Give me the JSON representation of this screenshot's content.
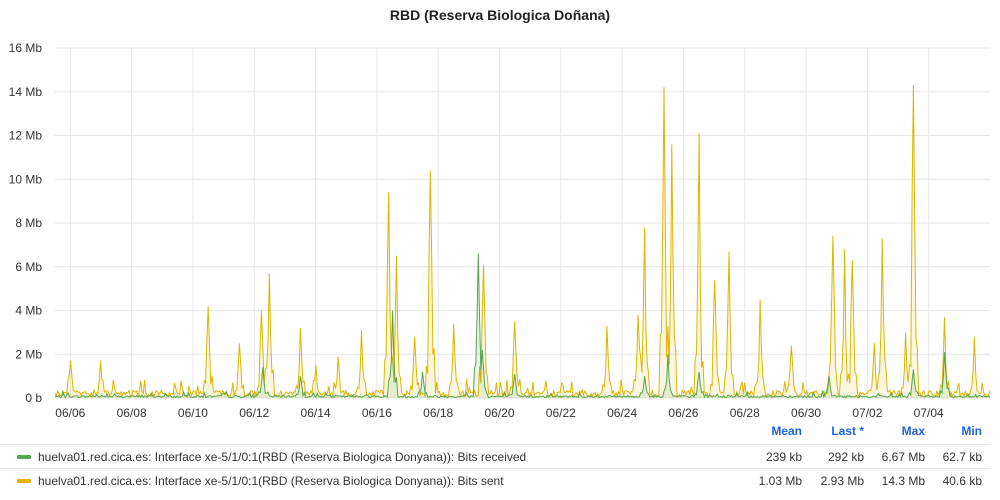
{
  "title": "RBD (Reserva Biologica Doñana)",
  "chart_data": {
    "type": "area",
    "title": "RBD (Reserva Biologica Doñana)",
    "x_ticks": [
      "06/06",
      "06/08",
      "06/10",
      "06/12",
      "06/14",
      "06/16",
      "06/18",
      "06/20",
      "06/22",
      "06/24",
      "06/26",
      "06/28",
      "06/30",
      "07/02",
      "07/04"
    ],
    "y_ticks": [
      "0 b",
      "2 Mb",
      "4 Mb",
      "6 Mb",
      "8 Mb",
      "10 Mb",
      "12 Mb",
      "14 Mb",
      "16 Mb"
    ],
    "ylim": [
      0,
      16
    ],
    "y_unit": "Mb",
    "xlim": [
      "06/05 12:00",
      "07/06 00:00"
    ],
    "grid": true,
    "series": [
      {
        "name": "huelva01.red.cica.es: Interface xe-5/1/0:1(RBD (Reserva Biologica Donyana)): Bits received",
        "color": "#56a64b",
        "peaks": [
          {
            "x": "06/12 07:00",
            "y": 1.4
          },
          {
            "x": "06/13 12:00",
            "y": 1.0
          },
          {
            "x": "06/16 12:00",
            "y": 4.0
          },
          {
            "x": "06/17 12:00",
            "y": 1.2
          },
          {
            "x": "06/19 07:00",
            "y": 6.6
          },
          {
            "x": "06/19 10:00",
            "y": 2.2
          },
          {
            "x": "06/20 12:00",
            "y": 1.1
          },
          {
            "x": "06/24 18:00",
            "y": 1.0
          },
          {
            "x": "06/25 12:00",
            "y": 2.0
          },
          {
            "x": "06/26 12:00",
            "y": 1.2
          },
          {
            "x": "06/30 18:00",
            "y": 1.0
          },
          {
            "x": "07/03 12:00",
            "y": 1.3
          },
          {
            "x": "07/04 12:00",
            "y": 2.1
          }
        ]
      },
      {
        "name": "huelva01.red.cica.es: Interface xe-5/1/0:1(RBD (Reserva Biologica Donyana)): Bits sent",
        "color": "#e0b400",
        "peaks": [
          {
            "x": "06/06 00:00",
            "y": 1.7
          },
          {
            "x": "06/07 00:00",
            "y": 1.7
          },
          {
            "x": "06/10 12:00",
            "y": 4.2
          },
          {
            "x": "06/11 12:00",
            "y": 2.5
          },
          {
            "x": "06/12 06:00",
            "y": 4.0
          },
          {
            "x": "06/12 12:00",
            "y": 5.7
          },
          {
            "x": "06/13 12:00",
            "y": 3.2
          },
          {
            "x": "06/14 00:00",
            "y": 1.5
          },
          {
            "x": "06/14 18:00",
            "y": 1.9
          },
          {
            "x": "06/15 12:00",
            "y": 3.1
          },
          {
            "x": "06/16 09:00",
            "y": 9.4
          },
          {
            "x": "06/16 15:00",
            "y": 6.5
          },
          {
            "x": "06/17 06:00",
            "y": 2.8
          },
          {
            "x": "06/17 18:00",
            "y": 10.4
          },
          {
            "x": "06/18 12:00",
            "y": 3.4
          },
          {
            "x": "06/19 12:00",
            "y": 6.1
          },
          {
            "x": "06/20 12:00",
            "y": 3.5
          },
          {
            "x": "06/21 12:00",
            "y": 0.8
          },
          {
            "x": "06/23 12:00",
            "y": 3.3
          },
          {
            "x": "06/24 12:00",
            "y": 3.8
          },
          {
            "x": "06/24 18:00",
            "y": 7.8
          },
          {
            "x": "06/25 09:00",
            "y": 14.2
          },
          {
            "x": "06/25 15:00",
            "y": 11.6
          },
          {
            "x": "06/26 12:00",
            "y": 12.1
          },
          {
            "x": "06/27 00:00",
            "y": 5.4
          },
          {
            "x": "06/27 12:00",
            "y": 6.7
          },
          {
            "x": "06/28 12:00",
            "y": 4.5
          },
          {
            "x": "06/29 12:00",
            "y": 2.4
          },
          {
            "x": "06/30 21:00",
            "y": 7.4
          },
          {
            "x": "07/01 06:00",
            "y": 6.8
          },
          {
            "x": "07/01 12:00",
            "y": 6.3
          },
          {
            "x": "07/02 06:00",
            "y": 2.5
          },
          {
            "x": "07/02 12:00",
            "y": 7.3
          },
          {
            "x": "07/03 06:00",
            "y": 3.0
          },
          {
            "x": "07/03 12:00",
            "y": 14.3
          },
          {
            "x": "07/04 12:00",
            "y": 3.7
          },
          {
            "x": "07/05 12:00",
            "y": 2.8
          }
        ]
      }
    ]
  },
  "legend": {
    "headers": [
      "Mean",
      "Last *",
      "Max",
      "Min"
    ],
    "rows": [
      {
        "name": "huelva01.red.cica.es: Interface xe-5/1/0:1(RBD (Reserva Biologica Donyana)): Bits received",
        "color": "#56a64b",
        "values": [
          "239 kb",
          "292 kb",
          "6.67 Mb",
          "62.7 kb"
        ]
      },
      {
        "name": "huelva01.red.cica.es: Interface xe-5/1/0:1(RBD (Reserva Biologica Donyana)): Bits sent",
        "color": "#e0b400",
        "values": [
          "1.03 Mb",
          "2.93 Mb",
          "14.3 Mb",
          "40.6 kb"
        ]
      }
    ]
  }
}
